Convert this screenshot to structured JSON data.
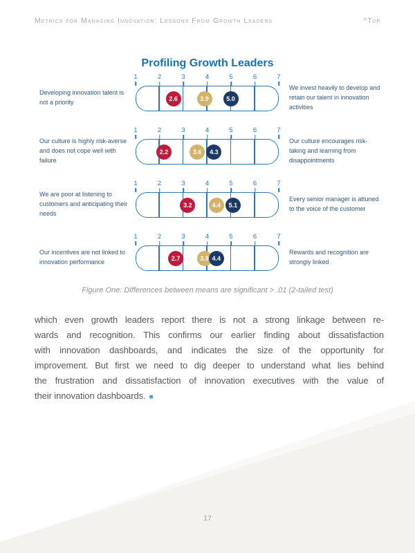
{
  "header": {
    "title": "Metrics for Managing Innovation: Lessons From Growth Leaders",
    "top_link": "^Top"
  },
  "chart_data": {
    "type": "scatter",
    "title": "Profiling Growth Leaders",
    "caption": "Figure One: Differences between means are significant > .01 (2-tailed test)",
    "axis": {
      "min": 1,
      "max": 7,
      "tick_labels": [
        "1",
        "2",
        "3",
        "4",
        "5",
        "6",
        "7"
      ]
    },
    "legend": "none",
    "series_order": [
      "red",
      "gold",
      "navy"
    ],
    "series_colors": {
      "red": "#c01b3d",
      "gold": "#d4b269",
      "navy": "#1d3a66"
    },
    "rows": [
      {
        "left_label": "Developing innovation talent is not a priority",
        "right_label": "We invest heavily to develop and retain our talent in innovation activities",
        "values": {
          "red": 2.6,
          "gold": 3.9,
          "navy": 5.0
        }
      },
      {
        "left_label": "Our culture is highly risk-averse and does not cope well with failure",
        "right_label": "Our culture encourages risk-taking and learning from disappointments",
        "values": {
          "red": 2.2,
          "gold": 3.6,
          "navy": 4.3
        }
      },
      {
        "left_label": "We are poor at listening to customers and anticipating their needs",
        "right_label": "Every senior manager is attuned to the voice of the customer",
        "values": {
          "red": 3.2,
          "gold": 4.4,
          "navy": 5.1
        }
      },
      {
        "left_label": "Our incentives are not linked to innovation performance",
        "right_label": "Rewards and recognition are strongly linked",
        "values": {
          "red": 2.7,
          "gold": 3.9,
          "navy": 4.4
        }
      }
    ]
  },
  "article": {
    "lines": [
      "which even growth leaders report there is not a strong linkage between re-",
      "wards and recognition. This confirms our earlier finding about dissatisfaction",
      "with innovation dashboards, and indicates the size of the opportunity for",
      "improvement. But first we need to dig deeper to understand what lies behind",
      "the frustration and dissatisfaction of innovation executives with the value of",
      "their innovation dashboards."
    ],
    "end_marker": "■"
  },
  "footer": {
    "page_number": "17"
  },
  "colors": {
    "title_blue": "#1173b9",
    "scale_blue": "#2a77b8",
    "label_blue": "#30567e",
    "dot_red": "#c01b3d",
    "dot_gold": "#d4b269",
    "dot_navy": "#1d3a66",
    "end_marker_blue": "#4a9fd8",
    "header_gray": "#a7aaac",
    "triangle_gray": "#f3f2ef"
  }
}
